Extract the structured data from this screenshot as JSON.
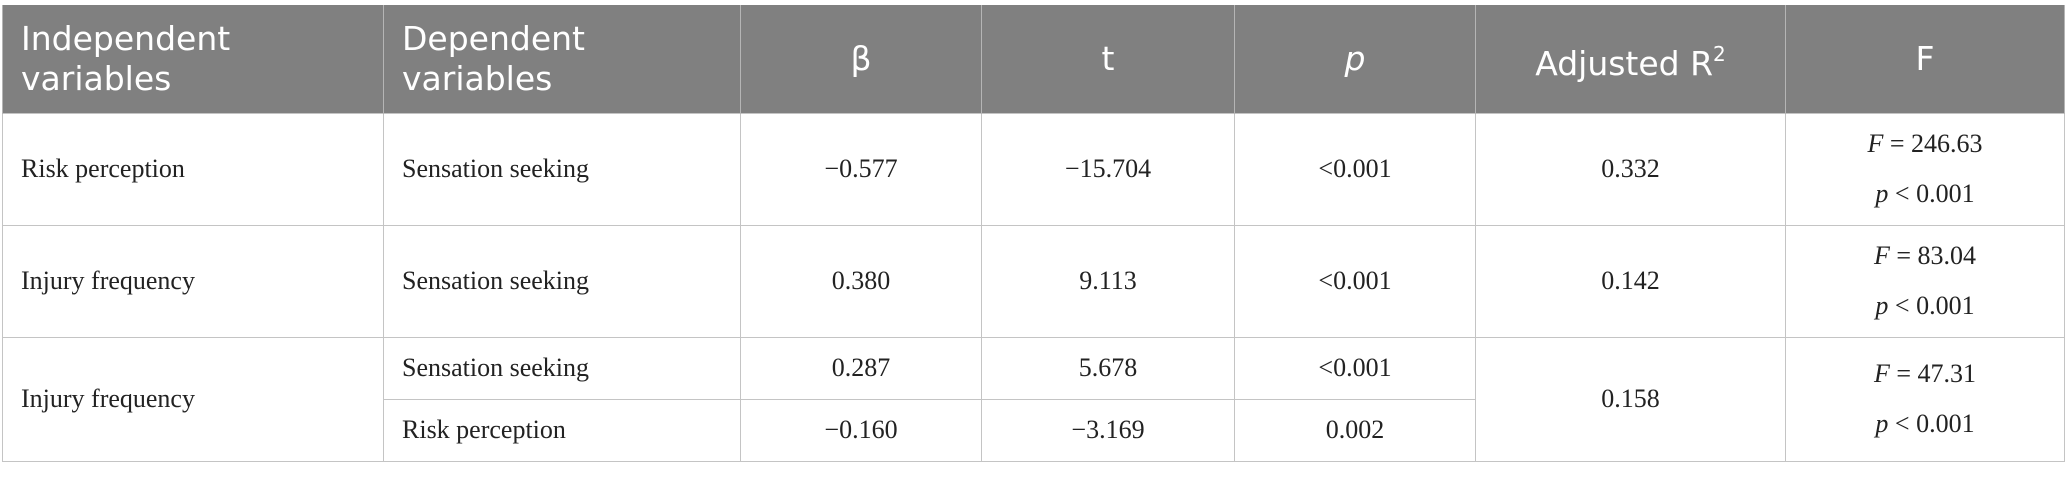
{
  "table": {
    "headers": {
      "independent": [
        "Independent",
        "variables"
      ],
      "dependent": [
        "Dependent",
        "variables"
      ],
      "beta": "β",
      "t": "t",
      "p": "p",
      "adj_r2": {
        "base": "Adjusted R",
        "sup": "2"
      },
      "f": "F"
    },
    "rows": [
      {
        "independent": "Risk perception",
        "dependent": "Sensation seeking",
        "beta": "−0.577",
        "t": "−15.704",
        "p": "<0.001",
        "adj_r2": "0.332",
        "f_symbol": "F",
        "f_value": " = 246.63",
        "f_p_symbol": "p",
        "f_p_value": " < 0.001"
      },
      {
        "independent": "Injury frequency",
        "dependent": "Sensation seeking",
        "beta": "0.380",
        "t": "9.113",
        "p": "<0.001",
        "adj_r2": "0.142",
        "f_symbol": "F",
        "f_value": " = 83.04",
        "f_p_symbol": "p",
        "f_p_value": " < 0.001"
      },
      {
        "independent": "Injury frequency",
        "adj_r2": "0.158",
        "f_symbol": "F",
        "f_value": " = 47.31",
        "f_p_symbol": "p",
        "f_p_value": " < 0.001",
        "predictors": [
          {
            "dependent": "Sensation seeking",
            "beta": "0.287",
            "t": "5.678",
            "p": "<0.001"
          },
          {
            "dependent": "Risk perception",
            "beta": "−0.160",
            "t": "−3.169",
            "p": "0.002"
          }
        ]
      }
    ]
  }
}
